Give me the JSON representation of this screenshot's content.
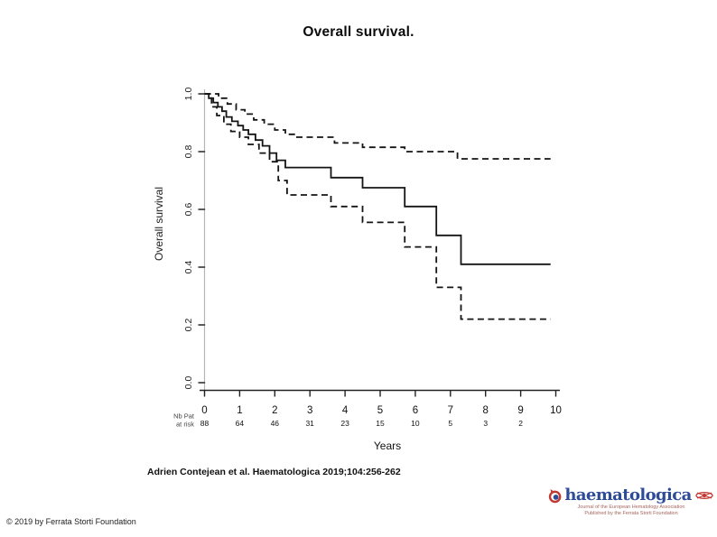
{
  "slide": {
    "title": "Overall survival.",
    "citation": "Adrien Contejean et al. Haematologica 2019;104:256-262",
    "copyright": "© 2019 by Ferrata Storti Foundation"
  },
  "logo": {
    "brand": "haematologica",
    "subtitle_line1": "Journal of the European Hematology Association",
    "subtitle_line2": "Published by the Ferrata Storti Foundation",
    "brand_color": "#2d4b97",
    "accent_color": "#c03a32",
    "subtitle_color": "#a6655e"
  },
  "chart_data": {
    "type": "line",
    "subtype": "kaplan-meier-step",
    "title": "",
    "xlabel": "Years",
    "ylabel": "Overall survival",
    "xlim": [
      0,
      10
    ],
    "ylim": [
      0.0,
      1.0
    ],
    "grid": false,
    "legend": "none",
    "line_color": "#141414",
    "x_tick_values": [
      0,
      1,
      2,
      3,
      4,
      5,
      6,
      7,
      8,
      9,
      10
    ],
    "x_tick_labels": [
      "0",
      "1",
      "2",
      "3",
      "4",
      "5",
      "6",
      "7",
      "8",
      "9",
      "10"
    ],
    "y_tick_values": [
      0.0,
      0.2,
      0.4,
      0.6,
      0.8,
      1.0
    ],
    "y_tick_labels": [
      "0.0",
      "0.2",
      "0.4",
      "0.6",
      "0.8",
      "1.0"
    ],
    "series": [
      {
        "name": "KM estimate",
        "style": "solid",
        "times": [
          0,
          0.12,
          0.25,
          0.38,
          0.5,
          0.62,
          0.78,
          0.95,
          1.1,
          1.25,
          1.45,
          1.65,
          1.85,
          2.05,
          2.3,
          3.6,
          4.5,
          5.7,
          6.6,
          7.3,
          9.85
        ],
        "values": [
          1.0,
          0.985,
          0.97,
          0.955,
          0.94,
          0.92,
          0.905,
          0.89,
          0.875,
          0.86,
          0.84,
          0.82,
          0.795,
          0.77,
          0.745,
          0.71,
          0.675,
          0.61,
          0.51,
          0.41,
          0.41
        ]
      },
      {
        "name": "Upper 95% CI",
        "style": "dashed",
        "times": [
          0,
          0.4,
          0.65,
          0.9,
          1.15,
          1.4,
          1.7,
          2.0,
          2.3,
          2.6,
          3.7,
          4.5,
          5.7,
          7.2,
          9.85
        ],
        "values": [
          1.0,
          0.985,
          0.965,
          0.945,
          0.93,
          0.91,
          0.895,
          0.875,
          0.86,
          0.85,
          0.83,
          0.815,
          0.8,
          0.775,
          0.775
        ]
      },
      {
        "name": "Lower 95% CI",
        "style": "dashed",
        "times": [
          0,
          0.2,
          0.35,
          0.55,
          0.75,
          1.0,
          1.25,
          1.55,
          1.85,
          2.1,
          2.35,
          3.6,
          4.5,
          5.7,
          6.6,
          7.3,
          9.85
        ],
        "values": [
          1.0,
          0.955,
          0.925,
          0.895,
          0.87,
          0.85,
          0.825,
          0.795,
          0.765,
          0.7,
          0.65,
          0.61,
          0.555,
          0.47,
          0.33,
          0.22,
          0.22
        ]
      }
    ],
    "at_risk": {
      "label_line1": "Nb Pat",
      "label_line2": "at risk",
      "times": [
        0,
        1,
        2,
        3,
        4,
        5,
        6,
        7,
        8,
        9
      ],
      "counts": [
        88,
        64,
        46,
        31,
        23,
        15,
        10,
        5,
        3,
        2
      ]
    }
  }
}
